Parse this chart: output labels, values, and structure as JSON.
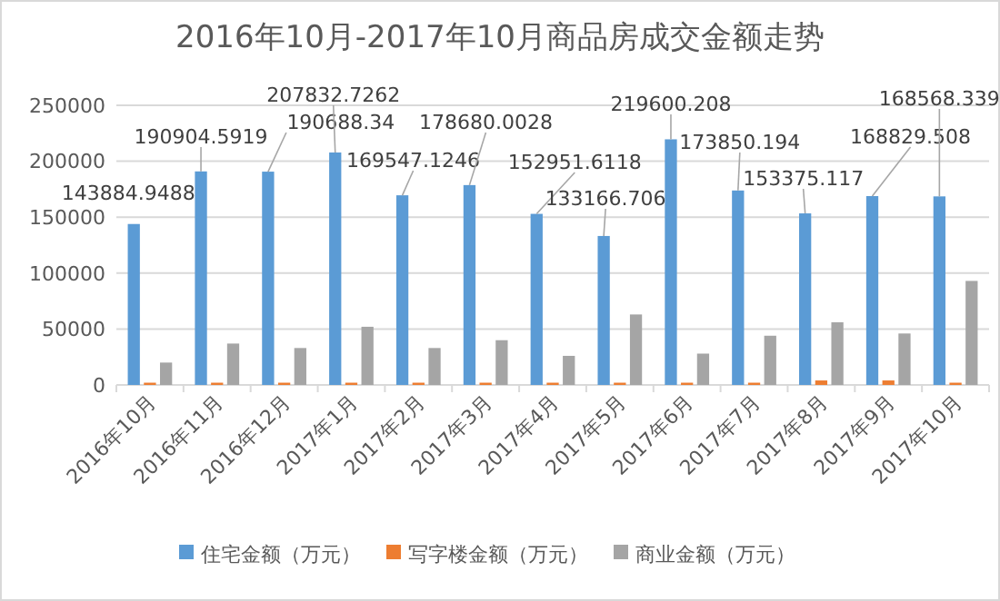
{
  "chart_data": {
    "type": "bar",
    "title": "2016年10月-2017年10月商品房成交金额走势",
    "categories": [
      "2016年10月",
      "2016年11月",
      "2016年12月",
      "2017年1月",
      "2017年2月",
      "2017年3月",
      "2017年4月",
      "2017年5月",
      "2017年6月",
      "2017年7月",
      "2017年8月",
      "2017年9月",
      "2017年10月"
    ],
    "series": [
      {
        "name": "住宅金额（万元）",
        "color": "#5b9bd5",
        "values": [
          143884.9488,
          190904.5919,
          190688.34,
          207832.7262,
          169547.1246,
          178680.0028,
          152951.6118,
          133166.706,
          219600.208,
          173850.194,
          153375.117,
          168829.508,
          168568.339
        ],
        "value_labels": [
          "143884.9488",
          "190904.5919",
          "190688.34",
          "207832.7262",
          "169547.1246",
          "178680.0028",
          "152951.6118",
          "133166.706",
          "219600.208",
          "173850.194",
          "153375.117",
          "168829.508",
          "168568.339"
        ]
      },
      {
        "name": "写字楼金额（万元）",
        "color": "#ed7d31",
        "values": [
          2000,
          2000,
          2000,
          2000,
          2000,
          2000,
          2000,
          2000,
          2000,
          2000,
          4000,
          4000,
          2000
        ]
      },
      {
        "name": "商业金额（万元）",
        "color": "#a5a5a5",
        "values": [
          20000,
          37000,
          33000,
          52000,
          33000,
          40000,
          26000,
          63000,
          28000,
          44000,
          56000,
          46000,
          93000
        ]
      }
    ],
    "ylim": [
      0,
      250000
    ],
    "yticks": [
      0,
      50000,
      100000,
      150000,
      200000,
      250000
    ],
    "grid": "y",
    "legend": "bottom"
  }
}
